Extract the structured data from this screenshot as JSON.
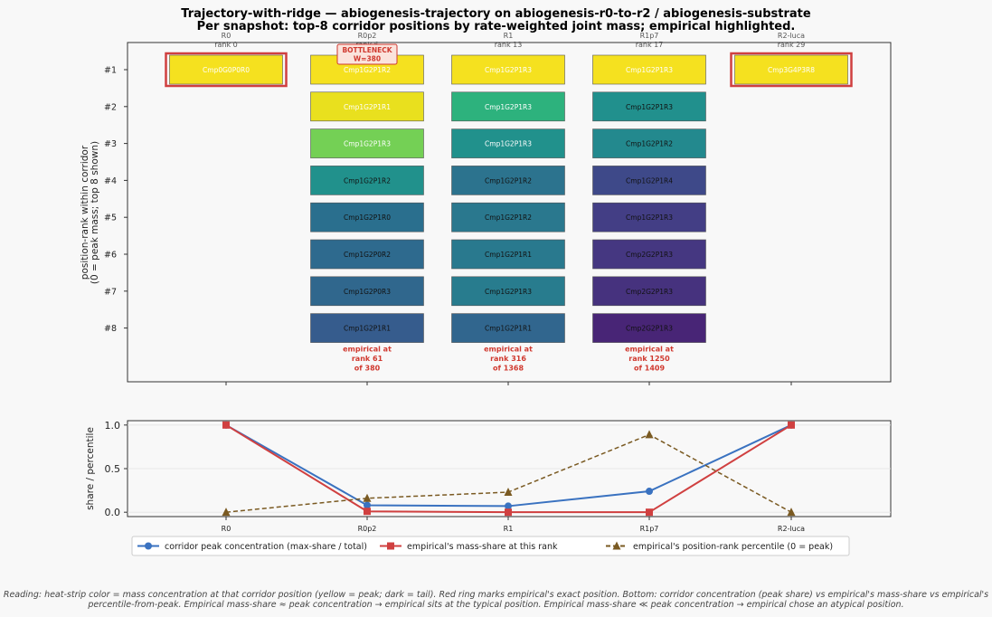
{
  "chart_data": [
    {
      "type": "heatmap",
      "title": "Trajectory-with-ridge — abiogenesis-trajectory  on  abiogenesis-r0-to-r2  /  abiogenesis-substrate",
      "subtitle": "Per snapshot: top-8 corridor positions by rate-weighted joint mass; empirical highlighted.",
      "ylabel": "position-rank within corridor\n(0 = peak mass; top 8 shown)",
      "row_labels": [
        "#1",
        "#2",
        "#3",
        "#4",
        "#5",
        "#6",
        "#7",
        "#8"
      ],
      "columns": [
        {
          "name": "R0",
          "rank_label": "rank 0",
          "cells": [
            {
              "label": "Cmp0G0P0R0",
              "color": "#f5e11f",
              "text": "#ffffff",
              "empirical": true
            }
          ],
          "note": ""
        },
        {
          "name": "R0p2",
          "rank_label": "rank 6",
          "cells": [
            {
              "label": "Cmp1G2P1R2",
              "color": "#f5e11f",
              "text": "#ffffff",
              "empirical": false
            },
            {
              "label": "Cmp1G2P1R1",
              "color": "#e9e01e",
              "text": "#ffffff",
              "empirical": false
            },
            {
              "label": "Cmp1G2P1R3",
              "color": "#74d055",
              "text": "#ffffff",
              "empirical": false
            },
            {
              "label": "Cmp1G2P1R2",
              "color": "#21918c",
              "text": "#111111",
              "empirical": false
            },
            {
              "label": "Cmp1G2P1R0",
              "color": "#2a6f8e",
              "text": "#111111",
              "empirical": false
            },
            {
              "label": "Cmp1G2P0R2",
              "color": "#2e6a8e",
              "text": "#111111",
              "empirical": false
            },
            {
              "label": "Cmp1G2P0R3",
              "color": "#30678d",
              "text": "#111111",
              "empirical": false
            },
            {
              "label": "Cmp1G2P1R1",
              "color": "#365c8d",
              "text": "#111111",
              "empirical": false
            }
          ],
          "note": "empirical at\nrank 61\nof 380"
        },
        {
          "name": "R1",
          "rank_label": "rank 13",
          "cells": [
            {
              "label": "Cmp1G2P1R3",
              "color": "#f5e11f",
              "text": "#ffffff",
              "empirical": false
            },
            {
              "label": "Cmp1G2P1R3",
              "color": "#2db27d",
              "text": "#ffffff",
              "empirical": false
            },
            {
              "label": "Cmp1G2P1R3",
              "color": "#21918c",
              "text": "#ffffff",
              "empirical": false
            },
            {
              "label": "Cmp1G2P1R2",
              "color": "#2c738e",
              "text": "#111111",
              "empirical": false
            },
            {
              "label": "Cmp1G2P1R2",
              "color": "#2a788e",
              "text": "#111111",
              "empirical": false
            },
            {
              "label": "Cmp1G2P1R1",
              "color": "#29798e",
              "text": "#111111",
              "empirical": false
            },
            {
              "label": "Cmp1G2P1R3",
              "color": "#287c8e",
              "text": "#111111",
              "empirical": false
            },
            {
              "label": "Cmp1G2P1R1",
              "color": "#31668e",
              "text": "#111111",
              "empirical": false
            }
          ],
          "note": "empirical at\nrank 316\nof 1368"
        },
        {
          "name": "R1p7",
          "rank_label": "rank 17",
          "cells": [
            {
              "label": "Cmp1G2P1R3",
              "color": "#f5e11f",
              "text": "#ffffff",
              "empirical": false
            },
            {
              "label": "Cmp1G2P1R3",
              "color": "#21908d",
              "text": "#111111",
              "empirical": false
            },
            {
              "label": "Cmp1G2P1R2",
              "color": "#23898e",
              "text": "#111111",
              "empirical": false
            },
            {
              "label": "Cmp1G2P1R4",
              "color": "#3e4989",
              "text": "#111111",
              "empirical": false
            },
            {
              "label": "Cmp1G2P1R3",
              "color": "#433e85",
              "text": "#111111",
              "empirical": false
            },
            {
              "label": "Cmp2G2P1R3",
              "color": "#453781",
              "text": "#111111",
              "empirical": false
            },
            {
              "label": "Cmp2G2P1R3",
              "color": "#46327e",
              "text": "#111111",
              "empirical": false
            },
            {
              "label": "Cmp2G2P1R3",
              "color": "#482576",
              "text": "#111111",
              "empirical": false
            }
          ],
          "note": "empirical at\nrank 1250\nof 1409"
        },
        {
          "name": "R2-luca",
          "rank_label": "rank 29",
          "cells": [
            {
              "label": "Cmp3G4P3R8",
              "color": "#f5e11f",
              "text": "#ffffff",
              "empirical": true
            }
          ],
          "note": ""
        }
      ],
      "bottleneck": {
        "column": "R0p2",
        "text": "BOTTLENECK\nW=380",
        "color": "#d0392f",
        "fill": "#fbe3dc"
      },
      "empirical_ring_color": "#d04040",
      "note_color": "#d0392f"
    },
    {
      "type": "line",
      "categories": [
        "R0",
        "R0p2",
        "R1",
        "R1p7",
        "R2-luca"
      ],
      "ylabel": "share / percentile",
      "ylim": [
        -0.05,
        1.05
      ],
      "yticks": [
        "0.0",
        "0.5",
        "1.0"
      ],
      "legend_placement": "bottom",
      "series": [
        {
          "name": "corridor peak concentration  (max-share / total)",
          "values": [
            1.0,
            0.08,
            0.07,
            0.24,
            1.0
          ],
          "color": "#3a72c0",
          "dash": "",
          "marker": "circle"
        },
        {
          "name": "empirical's mass-share at this rank",
          "values": [
            1.0,
            0.01,
            0.0,
            0.0,
            1.0
          ],
          "color": "#d04040",
          "dash": "",
          "marker": "square"
        },
        {
          "name": "empirical's position-rank percentile  (0 = peak)",
          "values": [
            0.0,
            0.16,
            0.23,
            0.89,
            0.0
          ],
          "color": "#7a5a22",
          "dash": "5,3",
          "marker": "triangle"
        }
      ]
    }
  ],
  "caption": {
    "line1": "Reading: heat-strip color = mass concentration at that corridor position (yellow = peak; dark = tail).  Red ring marks empirical's exact position. Bottom: corridor concentration (peak share) vs empirical's mass-share vs empirical's",
    "line2": "percentile-from-peak.  Empirical mass-share ≈ peak concentration → empirical sits at the typical position. Empirical mass-share ≪ peak concentration → empirical chose an atypical position."
  }
}
